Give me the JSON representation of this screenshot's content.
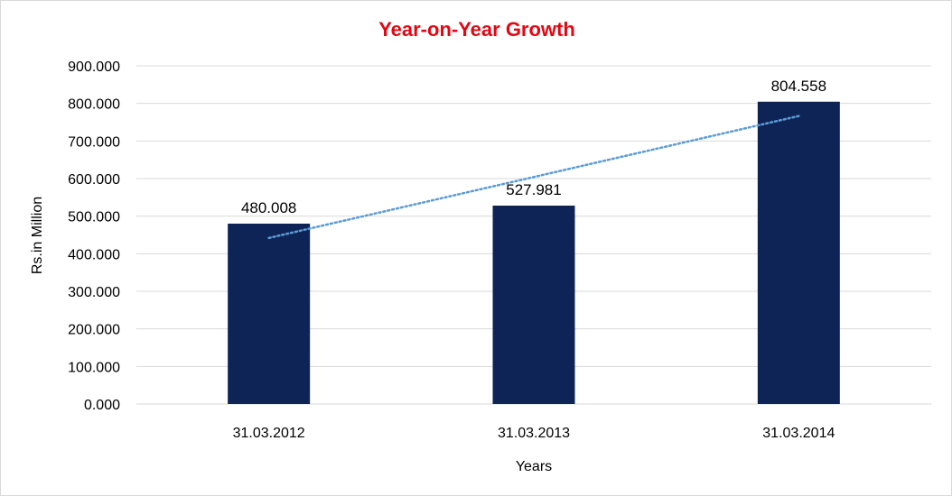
{
  "chart_data": {
    "type": "bar",
    "title": "Year-on-Year Growth",
    "xlabel": "Years",
    "ylabel": "Rs.in Million",
    "categories": [
      "31.03.2012",
      "31.03.2013",
      "31.03.2014"
    ],
    "values": [
      480.008,
      527.981,
      804.558
    ],
    "data_labels": [
      "480.008",
      "527.981",
      "804.558"
    ],
    "y_ticks": [
      "0.000",
      "100.000",
      "200.000",
      "300.000",
      "400.000",
      "500.000",
      "600.000",
      "700.000",
      "800.000",
      "900.000"
    ],
    "ylim": [
      0,
      900
    ],
    "y_step": 100,
    "grid": true,
    "legend": "none",
    "trendline": {
      "type": "linear",
      "style": "dotted"
    },
    "colors": {
      "bar": "#0f2456",
      "title": "#e30613",
      "trendline": "#5b9bd5",
      "grid": "#d9d9d9"
    }
  }
}
